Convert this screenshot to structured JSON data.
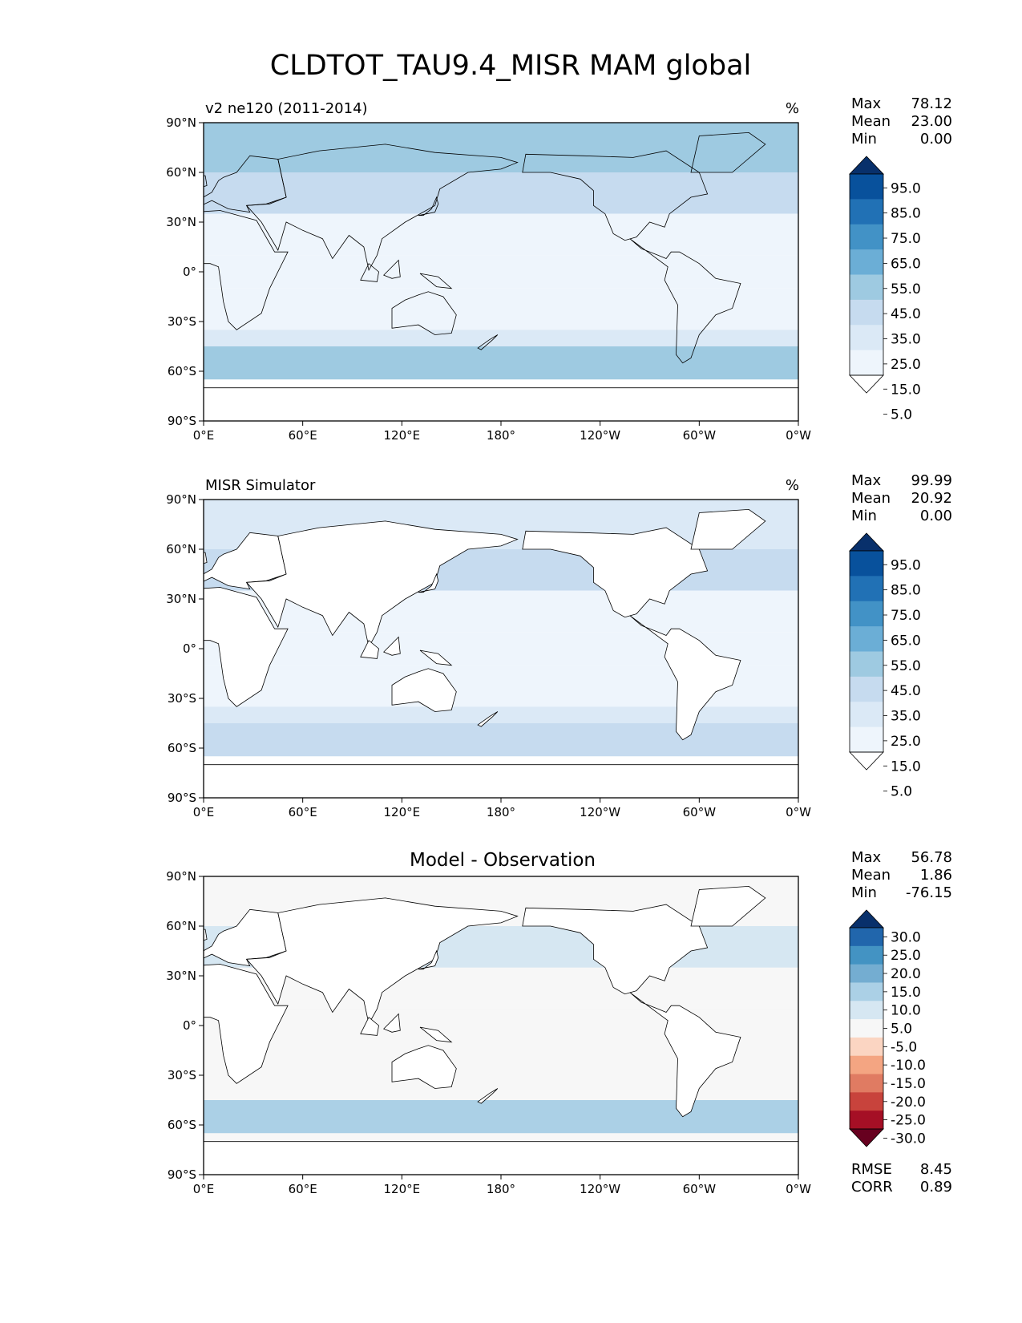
{
  "figure": {
    "title": "CLDTOT_TAU9.4_MISR MAM global"
  },
  "colors": {
    "ocean_blue": "#c6dbef",
    "land": "#ffffff",
    "frame": "#000000"
  },
  "chart_data": [
    {
      "type": "heatmap",
      "name": "model-map",
      "title": "v2 ne120 (2011-2014)",
      "units": "%",
      "xlabel": "",
      "ylabel": "",
      "xlim": [
        0,
        360
      ],
      "ylim": [
        -90,
        90
      ],
      "x_ticks": [
        "0°E",
        "60°E",
        "120°E",
        "180°",
        "120°W",
        "60°W",
        "0°W"
      ],
      "y_ticks": [
        "90°N",
        "60°N",
        "30°N",
        "0°",
        "30°S",
        "60°S",
        "90°S"
      ],
      "stats": [
        {
          "label": "Max",
          "value": "78.12"
        },
        {
          "label": "Mean",
          "value": "23.00"
        },
        {
          "label": "Min",
          "value": "0.00"
        }
      ],
      "colorbar": {
        "levels": [
          "95.0",
          "85.0",
          "75.0",
          "65.0",
          "55.0",
          "45.0",
          "35.0",
          "25.0",
          "15.0",
          "5.0"
        ],
        "colors": [
          "#08306b",
          "#08519c",
          "#2171b5",
          "#4292c6",
          "#6baed6",
          "#9ecae1",
          "#c6dbef",
          "#dbe9f6",
          "#eef5fc",
          "#ffffff"
        ]
      },
      "zonal_bands": [
        {
          "lat": [
            60,
            90
          ],
          "value": 50
        },
        {
          "lat": [
            35,
            60
          ],
          "value": 40
        },
        {
          "lat": [
            10,
            35
          ],
          "value": 20
        },
        {
          "lat": [
            -10,
            10
          ],
          "value": 15
        },
        {
          "lat": [
            -35,
            -10
          ],
          "value": 18
        },
        {
          "lat": [
            -45,
            -35
          ],
          "value": 30
        },
        {
          "lat": [
            -65,
            -45
          ],
          "value": 50
        },
        {
          "lat": [
            -90,
            -65
          ],
          "value": 5
        }
      ]
    },
    {
      "type": "heatmap",
      "name": "obs-map",
      "title": "MISR Simulator",
      "units": "%",
      "xlim": [
        0,
        360
      ],
      "ylim": [
        -90,
        90
      ],
      "x_ticks": [
        "0°E",
        "60°E",
        "120°E",
        "180°",
        "120°W",
        "60°W",
        "0°W"
      ],
      "y_ticks": [
        "90°N",
        "60°N",
        "30°N",
        "0°",
        "30°S",
        "60°S",
        "90°S"
      ],
      "stats": [
        {
          "label": "Max",
          "value": "99.99"
        },
        {
          "label": "Mean",
          "value": "20.92"
        },
        {
          "label": "Min",
          "value": "0.00"
        }
      ],
      "colorbar": {
        "levels": [
          "95.0",
          "85.0",
          "75.0",
          "65.0",
          "55.0",
          "45.0",
          "35.0",
          "25.0",
          "15.0",
          "5.0"
        ],
        "colors": [
          "#08306b",
          "#08519c",
          "#2171b5",
          "#4292c6",
          "#6baed6",
          "#9ecae1",
          "#c6dbef",
          "#dbe9f6",
          "#eef5fc",
          "#ffffff"
        ]
      },
      "zonal_bands": [
        {
          "lat": [
            60,
            90
          ],
          "value": 30
        },
        {
          "lat": [
            35,
            60
          ],
          "value": 35
        },
        {
          "lat": [
            10,
            35
          ],
          "value": 22
        },
        {
          "lat": [
            -10,
            10
          ],
          "value": 18
        },
        {
          "lat": [
            -35,
            -10
          ],
          "value": 20
        },
        {
          "lat": [
            -45,
            -35
          ],
          "value": 28
        },
        {
          "lat": [
            -65,
            -45
          ],
          "value": 38
        },
        {
          "lat": [
            -90,
            -65
          ],
          "value": 0
        }
      ]
    },
    {
      "type": "heatmap",
      "name": "diff-map",
      "title": "Model - Observation",
      "units": "",
      "xlim": [
        0,
        360
      ],
      "ylim": [
        -90,
        90
      ],
      "x_ticks": [
        "0°E",
        "60°E",
        "120°E",
        "180°",
        "120°W",
        "60°W",
        "0°W"
      ],
      "y_ticks": [
        "90°N",
        "60°N",
        "30°N",
        "0°",
        "30°S",
        "60°S",
        "90°S"
      ],
      "stats": [
        {
          "label": "Max",
          "value": "56.78"
        },
        {
          "label": "Mean",
          "value": "1.86"
        },
        {
          "label": "Min",
          "value": "-76.15"
        }
      ],
      "colorbar": {
        "levels": [
          "30.0",
          "25.0",
          "20.0",
          "15.0",
          "10.0",
          "5.0",
          "-5.0",
          "-10.0",
          "-15.0",
          "-20.0",
          "-25.0",
          "-30.0"
        ],
        "colors": [
          "#08306b",
          "#2166ac",
          "#4393c3",
          "#74add1",
          "#abd0e6",
          "#d6e7f2",
          "#f7f7f7",
          "#fbd5c2",
          "#f4a582",
          "#e07b62",
          "#c8433c",
          "#a50f25",
          "#67001f"
        ]
      },
      "zonal_bands": [
        {
          "lat": [
            60,
            90
          ],
          "value": 0
        },
        {
          "lat": [
            35,
            60
          ],
          "value": 8
        },
        {
          "lat": [
            -10,
            10
          ],
          "value": -4
        },
        {
          "lat": [
            -35,
            -10
          ],
          "value": 0
        },
        {
          "lat": [
            -65,
            -45
          ],
          "value": 14
        },
        {
          "lat": [
            -90,
            -65
          ],
          "value": 0
        }
      ],
      "metrics": [
        {
          "label": "RMSE",
          "value": "8.45"
        },
        {
          "label": "CORR",
          "value": "0.89"
        }
      ]
    }
  ]
}
